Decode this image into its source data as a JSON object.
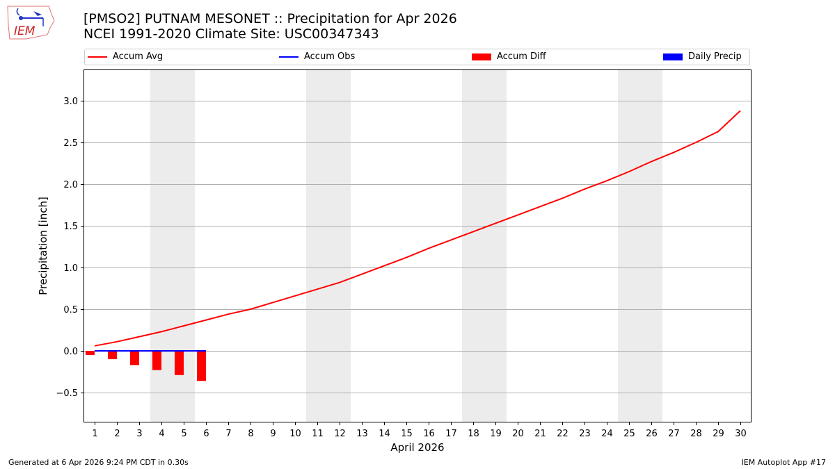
{
  "header": {
    "title_line1": "[PMSO2] PUTNAM MESONET :: Precipitation for Apr 2026",
    "title_line2": "NCEI 1991-2020 Climate Site: USC00347343",
    "logo_text": "IEM"
  },
  "legend": {
    "items": [
      {
        "label": "Accum Avg",
        "kind": "line",
        "color": "#ff0000"
      },
      {
        "label": "Accum Obs",
        "kind": "line",
        "color": "#0000ff"
      },
      {
        "label": "Accum Diff",
        "kind": "patch",
        "color": "#ff0000"
      },
      {
        "label": "Daily Precip",
        "kind": "patch",
        "color": "#0000ff"
      }
    ]
  },
  "footer": {
    "left": "Generated at 6 Apr 2026 9:24 PM CDT in 0.30s",
    "right": "IEM Autoplot App #17"
  },
  "chart_data": {
    "type": "line",
    "title": "[PMSO2] PUTNAM MESONET :: Precipitation for Apr 2026",
    "subtitle": "NCEI 1991-2020 Climate Site: USC00347343",
    "xlabel": "April 2026",
    "ylabel": "Precipitation [inch]",
    "ylim": [
      -0.85,
      3.38
    ],
    "xlim": [
      0.5,
      30.5
    ],
    "yticks": [
      -0.5,
      0.0,
      0.5,
      1.0,
      1.5,
      2.0,
      2.5,
      3.0
    ],
    "ytick_labels": [
      "−0.5",
      "0.0",
      "0.5",
      "1.0",
      "1.5",
      "2.0",
      "2.5",
      "3.0"
    ],
    "x": [
      1,
      2,
      3,
      4,
      5,
      6,
      7,
      8,
      9,
      10,
      11,
      12,
      13,
      14,
      15,
      16,
      17,
      18,
      19,
      20,
      21,
      22,
      23,
      24,
      25,
      26,
      27,
      28,
      29,
      30
    ],
    "grid": "horizontal",
    "legend_position": "top",
    "weekend_shading": [
      [
        3.5,
        5.5
      ],
      [
        10.5,
        12.5
      ],
      [
        17.5,
        19.5
      ],
      [
        24.5,
        26.5
      ]
    ],
    "series": [
      {
        "name": "Accum Avg",
        "type": "line",
        "color": "#ff0000",
        "values": [
          0.06,
          0.11,
          0.17,
          0.23,
          0.3,
          0.37,
          0.44,
          0.5,
          0.58,
          0.66,
          0.74,
          0.82,
          0.92,
          1.02,
          1.12,
          1.23,
          1.33,
          1.43,
          1.53,
          1.63,
          1.73,
          1.83,
          1.94,
          2.04,
          2.15,
          2.27,
          2.38,
          2.5,
          2.63,
          2.88
        ]
      },
      {
        "name": "Accum Obs",
        "type": "line",
        "color": "#0000ff",
        "values": [
          0.0,
          0.0,
          0.0,
          0.0,
          0.0,
          0.0
        ]
      },
      {
        "name": "Accum Diff",
        "type": "bar",
        "color": "#ff0000",
        "values": [
          -0.05,
          -0.1,
          -0.17,
          -0.23,
          -0.29,
          -0.36
        ]
      },
      {
        "name": "Daily Precip",
        "type": "bar",
        "color": "#0000ff",
        "values": [
          0,
          0,
          0,
          0,
          0,
          0
        ]
      }
    ]
  }
}
